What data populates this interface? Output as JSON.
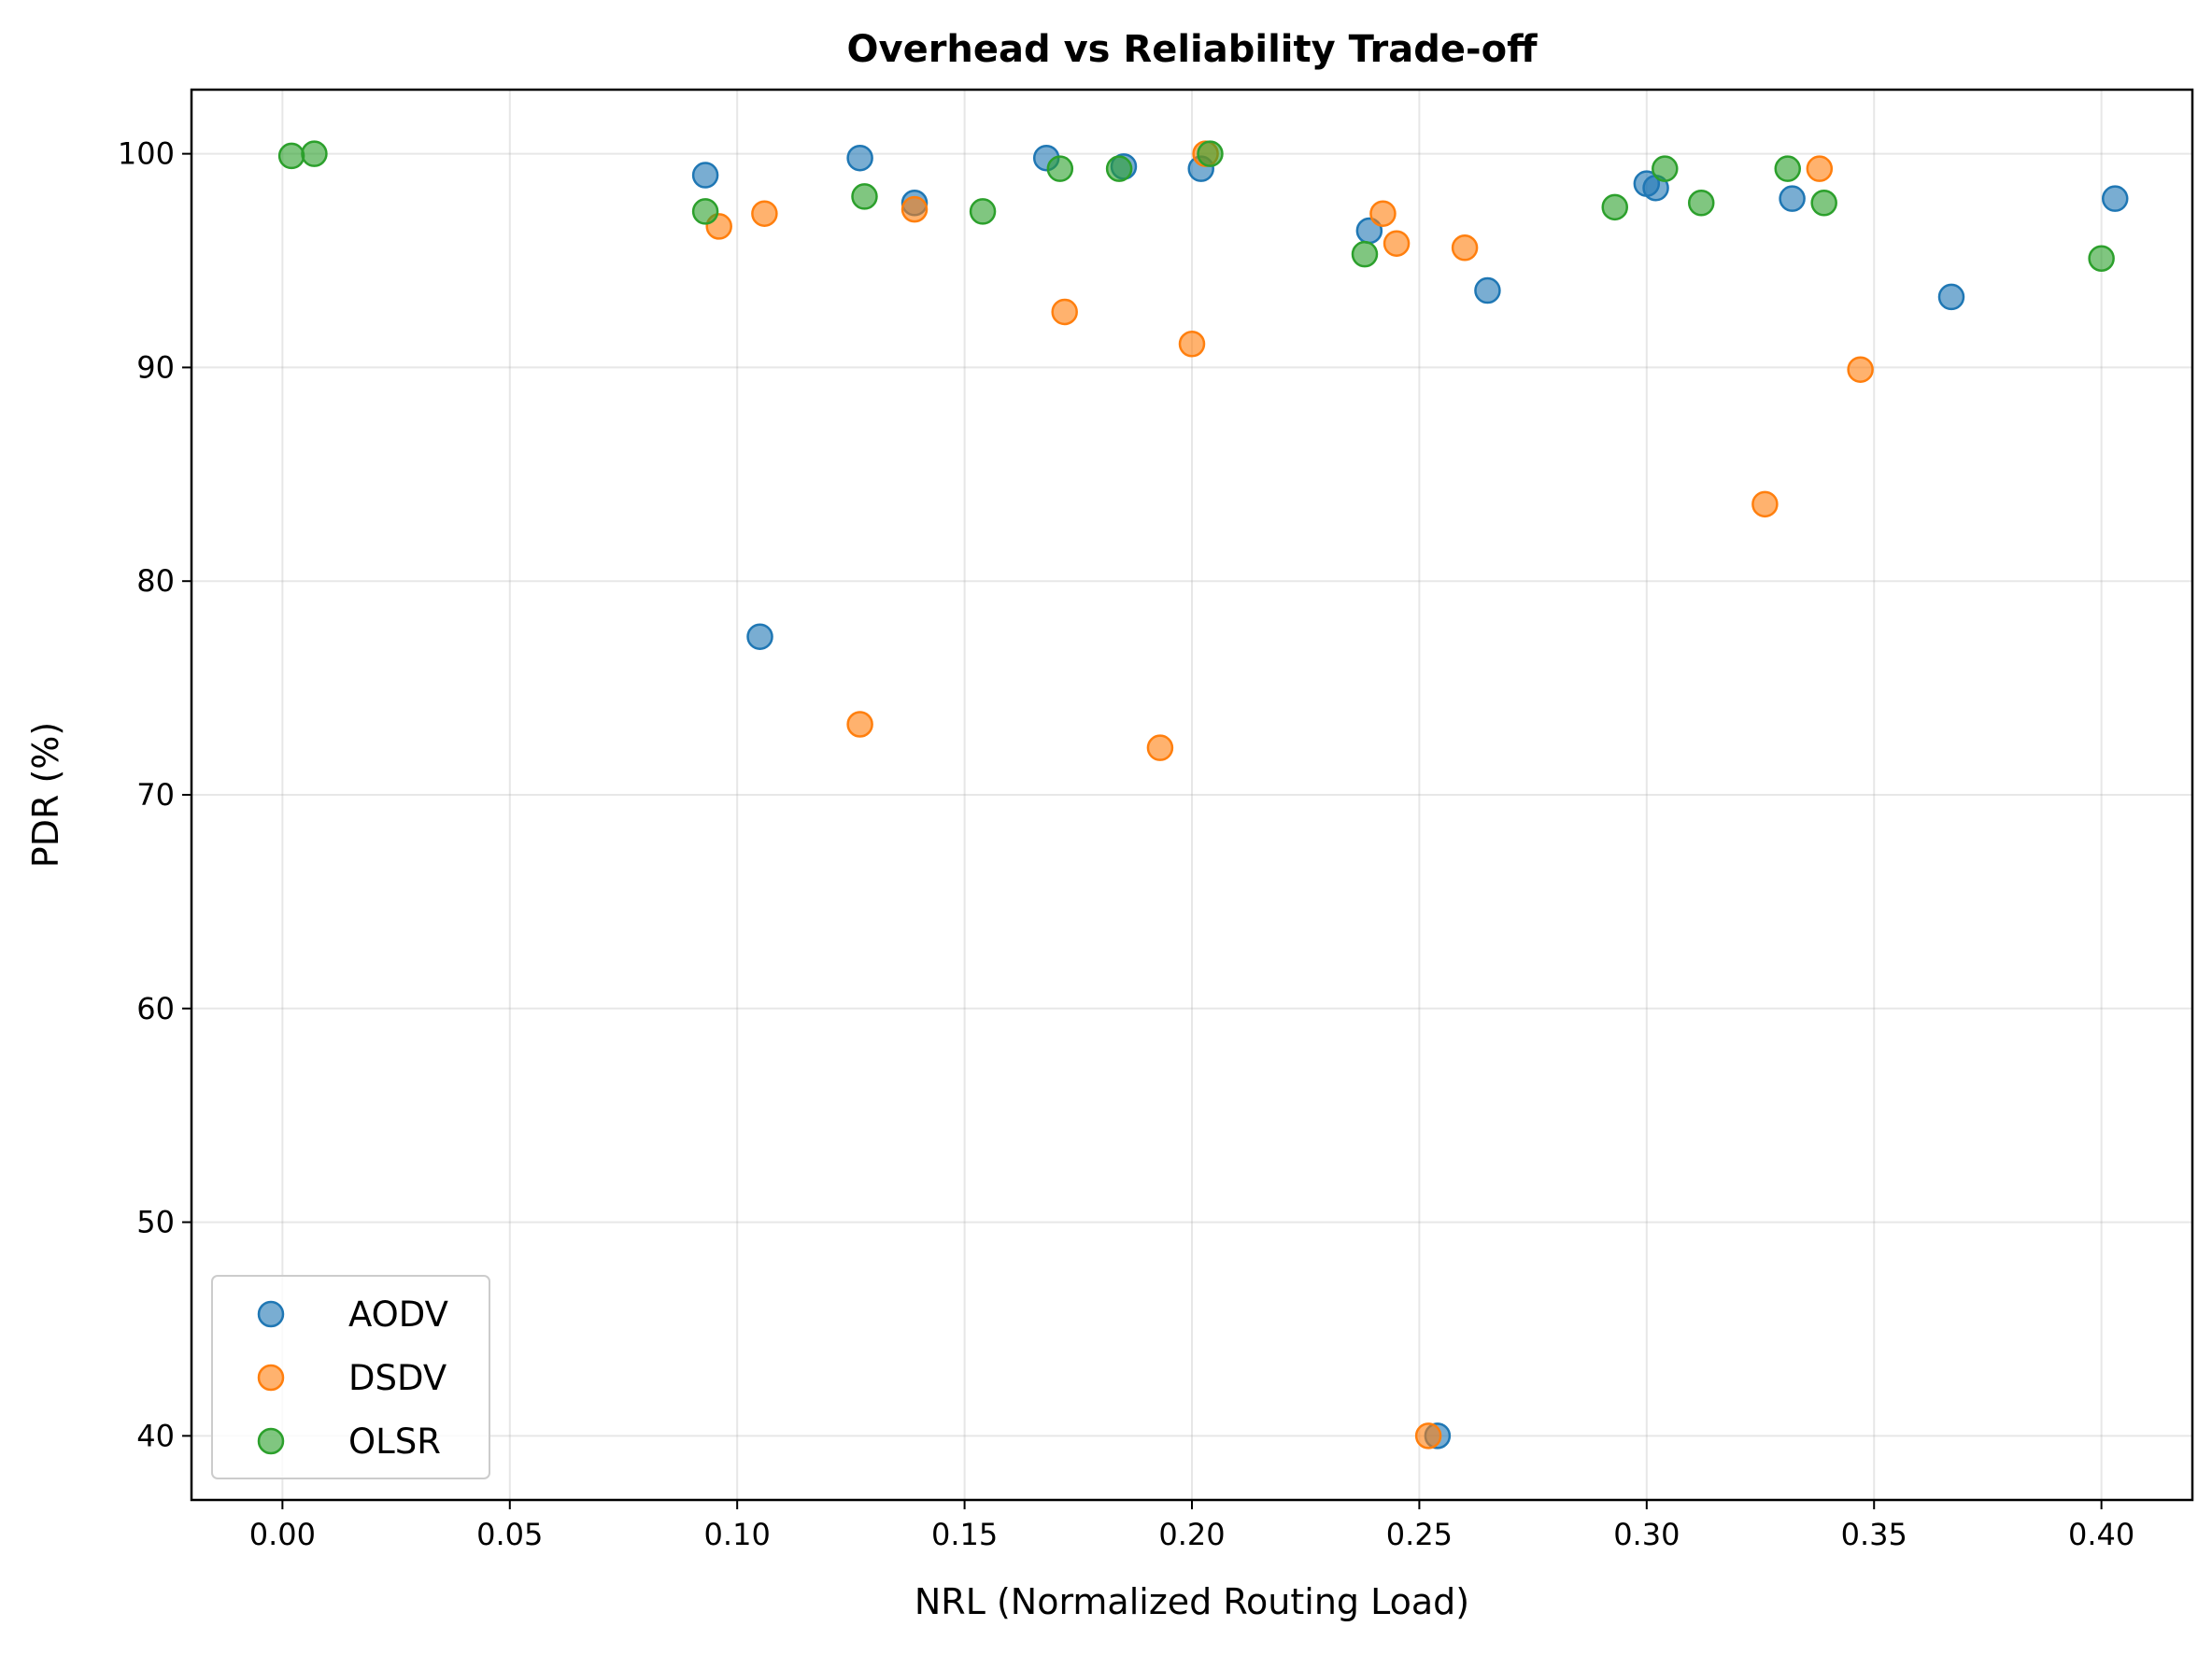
{
  "chart_data": {
    "type": "scatter",
    "title": "Overhead vs Reliability Trade-off",
    "xlabel": "NRL (Normalized Routing Load)",
    "ylabel": "PDR (%)",
    "xlim": [
      -0.02,
      0.42
    ],
    "ylim": [
      37,
      103
    ],
    "xticks": [
      "0.00",
      "0.05",
      "0.10",
      "0.15",
      "0.20",
      "0.25",
      "0.30",
      "0.35",
      "0.40"
    ],
    "xtick_values": [
      0.0,
      0.05,
      0.1,
      0.15,
      0.2,
      0.25,
      0.3,
      0.35,
      0.4
    ],
    "yticks": [
      "40",
      "50",
      "60",
      "70",
      "80",
      "90",
      "100"
    ],
    "ytick_values": [
      40,
      50,
      60,
      70,
      80,
      90,
      100
    ],
    "grid": true,
    "legend_position": "lower-left",
    "series": [
      {
        "name": "AODV",
        "color": "#1f77b4",
        "points": [
          [
            0.093,
            99.0
          ],
          [
            0.105,
            77.4
          ],
          [
            0.127,
            99.8
          ],
          [
            0.139,
            97.7
          ],
          [
            0.168,
            99.8
          ],
          [
            0.185,
            99.4
          ],
          [
            0.202,
            99.3
          ],
          [
            0.239,
            96.4
          ],
          [
            0.254,
            40.0
          ],
          [
            0.265,
            93.6
          ],
          [
            0.3,
            98.6
          ],
          [
            0.302,
            98.4
          ],
          [
            0.332,
            97.9
          ],
          [
            0.367,
            93.3
          ],
          [
            0.403,
            97.9
          ]
        ]
      },
      {
        "name": "DSDV",
        "color": "#ff7f0e",
        "points": [
          [
            0.096,
            96.6
          ],
          [
            0.106,
            97.2
          ],
          [
            0.127,
            73.3
          ],
          [
            0.139,
            97.4
          ],
          [
            0.172,
            92.6
          ],
          [
            0.193,
            72.2
          ],
          [
            0.2,
            91.1
          ],
          [
            0.203,
            100.0
          ],
          [
            0.242,
            97.2
          ],
          [
            0.245,
            95.8
          ],
          [
            0.252,
            40.0
          ],
          [
            0.26,
            95.6
          ],
          [
            0.326,
            83.6
          ],
          [
            0.338,
            99.3
          ],
          [
            0.347,
            89.9
          ]
        ]
      },
      {
        "name": "OLSR",
        "color": "#2ca02c",
        "points": [
          [
            0.002,
            99.9
          ],
          [
            0.007,
            100.0
          ],
          [
            0.093,
            97.3
          ],
          [
            0.128,
            98.0
          ],
          [
            0.154,
            97.3
          ],
          [
            0.171,
            99.3
          ],
          [
            0.184,
            99.3
          ],
          [
            0.204,
            100.0
          ],
          [
            0.238,
            95.3
          ],
          [
            0.293,
            97.5
          ],
          [
            0.304,
            99.3
          ],
          [
            0.312,
            97.7
          ],
          [
            0.331,
            99.3
          ],
          [
            0.339,
            97.7
          ],
          [
            0.4,
            95.1
          ]
        ]
      }
    ]
  }
}
